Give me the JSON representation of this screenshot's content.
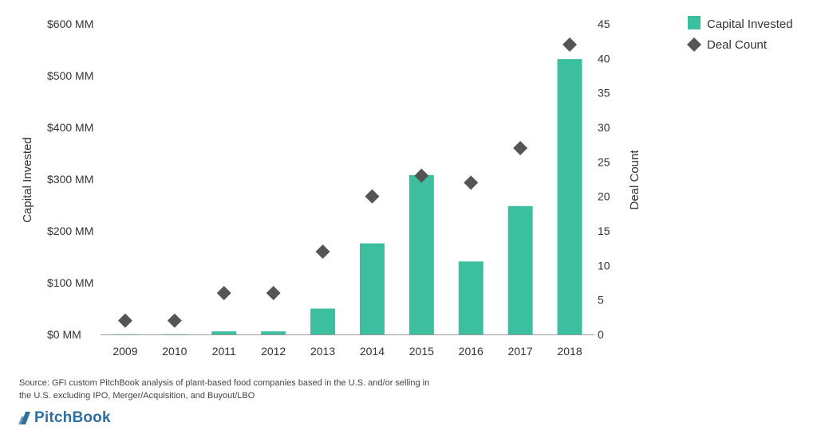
{
  "colors": {
    "bar": "#3bbf9f",
    "marker": "#555555",
    "axis": "#9a9a9a",
    "brand": "#2f6f9f"
  },
  "chart_data": {
    "type": "bar",
    "categories": [
      "2009",
      "2010",
      "2011",
      "2012",
      "2013",
      "2014",
      "2015",
      "2016",
      "2017",
      "2018"
    ],
    "series": [
      {
        "name": "Capital Invested",
        "kind": "bar",
        "axis": "left",
        "values": [
          0.5,
          0.5,
          6,
          6,
          50,
          176,
          308,
          141,
          248,
          532
        ]
      },
      {
        "name": "Deal Count",
        "kind": "marker",
        "axis": "right",
        "values": [
          2,
          2,
          6,
          6,
          12,
          20,
          23,
          22,
          27,
          42
        ]
      }
    ],
    "ylabel": "Capital Invested",
    "y2label": "Deal Count",
    "ylim": [
      0,
      600
    ],
    "y2lim": [
      0,
      45
    ],
    "yticks": [
      "$0 MM",
      "$100 MM",
      "$200 MM",
      "$300 MM",
      "$400 MM",
      "$500 MM",
      "$600 MM"
    ],
    "y2ticks": [
      "0",
      "5",
      "10",
      "15",
      "20",
      "25",
      "30",
      "35",
      "40",
      "45"
    ],
    "grid": false,
    "legend": "top-right"
  },
  "legend": {
    "bar_label": "Capital Invested",
    "marker_label": "Deal Count"
  },
  "source_text": "Source: GFI custom PitchBook analysis of plant-based food companies based in the U.S. and/or selling in the U.S. excluding IPO, Merger/Acquisition, and Buyout/LBO",
  "logo": {
    "text": "PitchBook",
    "icon": "pitchbook-logo-icon"
  }
}
